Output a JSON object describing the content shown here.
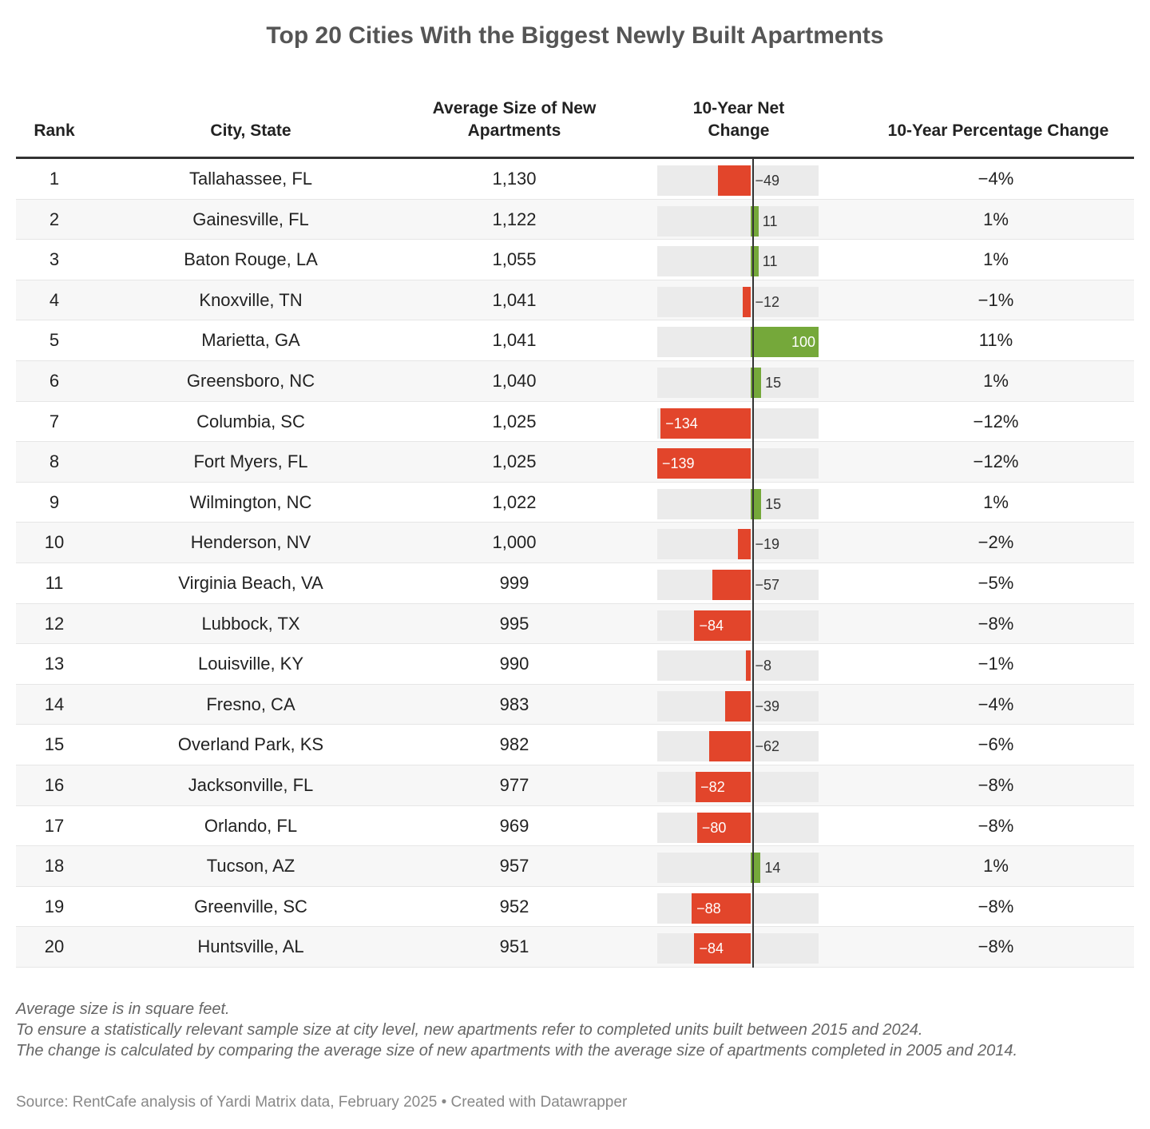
{
  "title": "Top 20 Cities With the Biggest Newly Built Apartments",
  "columns": [
    "Rank",
    "City, State",
    "Average Size of New Apartments",
    "10-Year Net Change",
    "10-Year Percentage Change"
  ],
  "colors": {
    "negative": "#e2452b",
    "positive": "#75a83a",
    "bar_background": "#ebebeb",
    "zero_line": "#333333"
  },
  "chart_data": {
    "type": "table",
    "bar_column": "10-Year Net Change",
    "bar_domain": [
      -139,
      100
    ],
    "rows": [
      {
        "rank": "1",
        "city": "Tallahassee, FL",
        "size": "1,130",
        "net": -49,
        "net_label": "−49",
        "pct": "−4%"
      },
      {
        "rank": "2",
        "city": "Gainesville, FL",
        "size": "1,122",
        "net": 11,
        "net_label": "11",
        "pct": "1%"
      },
      {
        "rank": "3",
        "city": "Baton Rouge, LA",
        "size": "1,055",
        "net": 11,
        "net_label": "11",
        "pct": "1%"
      },
      {
        "rank": "4",
        "city": "Knoxville, TN",
        "size": "1,041",
        "net": -12,
        "net_label": "−12",
        "pct": "−1%"
      },
      {
        "rank": "5",
        "city": "Marietta, GA",
        "size": "1,041",
        "net": 100,
        "net_label": "100",
        "pct": "11%"
      },
      {
        "rank": "6",
        "city": "Greensboro, NC",
        "size": "1,040",
        "net": 15,
        "net_label": "15",
        "pct": "1%"
      },
      {
        "rank": "7",
        "city": "Columbia, SC",
        "size": "1,025",
        "net": -134,
        "net_label": "−134",
        "pct": "−12%"
      },
      {
        "rank": "8",
        "city": "Fort Myers, FL",
        "size": "1,025",
        "net": -139,
        "net_label": "−139",
        "pct": "−12%"
      },
      {
        "rank": "9",
        "city": "Wilmington, NC",
        "size": "1,022",
        "net": 15,
        "net_label": "15",
        "pct": "1%"
      },
      {
        "rank": "10",
        "city": "Henderson, NV",
        "size": "1,000",
        "net": -19,
        "net_label": "−19",
        "pct": "−2%"
      },
      {
        "rank": "11",
        "city": "Virginia Beach, VA",
        "size": "999",
        "net": -57,
        "net_label": "−57",
        "pct": "−5%"
      },
      {
        "rank": "12",
        "city": "Lubbock, TX",
        "size": "995",
        "net": -84,
        "net_label": "−84",
        "pct": "−8%"
      },
      {
        "rank": "13",
        "city": "Louisville, KY",
        "size": "990",
        "net": -8,
        "net_label": "−8",
        "pct": "−1%"
      },
      {
        "rank": "14",
        "city": "Fresno, CA",
        "size": "983",
        "net": -39,
        "net_label": "−39",
        "pct": "−4%"
      },
      {
        "rank": "15",
        "city": "Overland Park, KS",
        "size": "982",
        "net": -62,
        "net_label": "−62",
        "pct": "−6%"
      },
      {
        "rank": "16",
        "city": "Jacksonville, FL",
        "size": "977",
        "net": -82,
        "net_label": "−82",
        "pct": "−8%"
      },
      {
        "rank": "17",
        "city": "Orlando, FL",
        "size": "969",
        "net": -80,
        "net_label": "−80",
        "pct": "−8%"
      },
      {
        "rank": "18",
        "city": "Tucson, AZ",
        "size": "957",
        "net": 14,
        "net_label": "14",
        "pct": "1%"
      },
      {
        "rank": "19",
        "city": "Greenville, SC",
        "size": "952",
        "net": -88,
        "net_label": "−88",
        "pct": "−8%"
      },
      {
        "rank": "20",
        "city": "Huntsville, AL",
        "size": "951",
        "net": -84,
        "net_label": "−84",
        "pct": "−8%"
      }
    ]
  },
  "notes": [
    "Average size is in square feet.",
    "To ensure a statistically relevant sample size at city level, new apartments refer to completed units built between 2015 and 2024.",
    "The change is calculated by comparing the average size of new apartments with the average size of apartments completed in 2005 and 2014."
  ],
  "source": "Source: RentCafe analysis of Yardi Matrix data, February 2025 • Created with Datawrapper"
}
